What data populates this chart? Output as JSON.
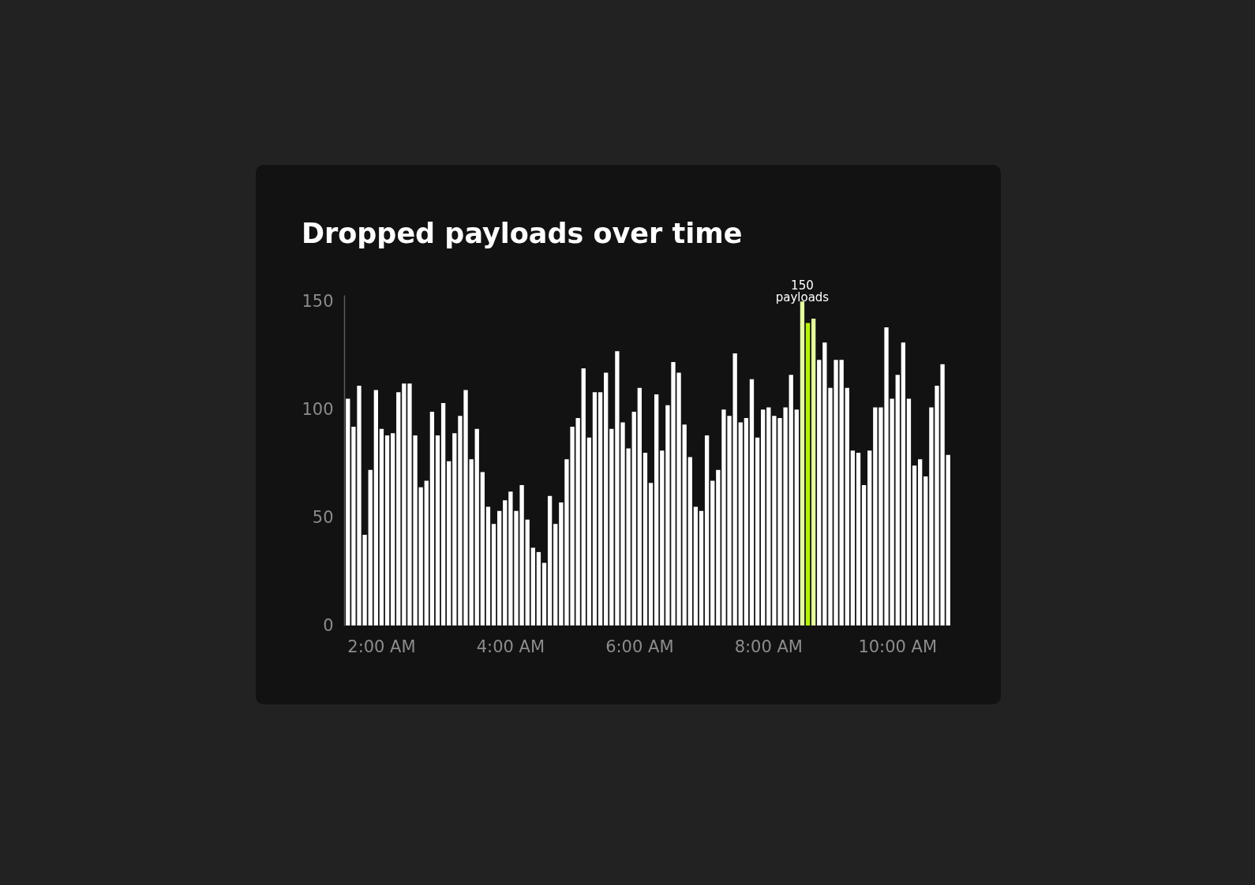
{
  "chart_data": {
    "type": "bar",
    "title": "Dropped payloads over time",
    "categories": [
      null,
      null,
      null,
      null,
      null,
      null,
      "2:00 AM",
      null,
      null,
      null,
      null,
      null,
      null,
      null,
      null,
      null,
      null,
      null,
      null,
      null,
      null,
      null,
      null,
      null,
      null,
      null,
      null,
      null,
      null,
      "4:00 AM",
      null,
      null,
      null,
      null,
      null,
      null,
      null,
      null,
      null,
      null,
      null,
      null,
      null,
      null,
      null,
      null,
      null,
      null,
      null,
      null,
      null,
      null,
      "6:00 AM",
      null,
      null,
      null,
      null,
      null,
      null,
      null,
      null,
      null,
      null,
      null,
      null,
      null,
      null,
      null,
      null,
      null,
      null,
      null,
      null,
      null,
      null,
      "8:00 AM",
      null,
      null,
      null,
      null,
      null,
      null,
      null,
      null,
      null,
      null,
      null,
      null,
      null,
      null,
      null,
      null,
      null,
      null,
      null,
      null,
      null,
      null,
      "10:00 AM",
      null,
      null,
      null,
      null,
      null,
      null,
      null,
      null,
      null
    ],
    "values": [
      105,
      92,
      111,
      42,
      72,
      109,
      91,
      88,
      89,
      108,
      112,
      112,
      88,
      64,
      67,
      99,
      88,
      103,
      76,
      89,
      97,
      109,
      77,
      91,
      71,
      55,
      47,
      53,
      58,
      62,
      53,
      65,
      49,
      36,
      34,
      29,
      60,
      47,
      57,
      77,
      92,
      96,
      119,
      87,
      108,
      108,
      117,
      91,
      127,
      94,
      82,
      99,
      110,
      80,
      66,
      107,
      81,
      102,
      122,
      117,
      93,
      78,
      55,
      53,
      88,
      67,
      72,
      100,
      97,
      126,
      94,
      96,
      114,
      87,
      100,
      101,
      97,
      96,
      101,
      116,
      100,
      150,
      140,
      142,
      123,
      131,
      110,
      123,
      123,
      110,
      81,
      80,
      65,
      81,
      101,
      101,
      138,
      105,
      116,
      131,
      105,
      74,
      77,
      69,
      101,
      111,
      121,
      79
    ],
    "colors": [
      "#ffffff",
      "#ffffff",
      "#ffffff",
      "#ffffff",
      "#ffffff",
      "#ffffff",
      "#ffffff",
      "#ffffff",
      "#ffffff",
      "#ffffff",
      "#ffffff",
      "#ffffff",
      "#ffffff",
      "#ffffff",
      "#ffffff",
      "#ffffff",
      "#ffffff",
      "#ffffff",
      "#ffffff",
      "#ffffff",
      "#ffffff",
      "#ffffff",
      "#ffffff",
      "#ffffff",
      "#ffffff",
      "#ffffff",
      "#ffffff",
      "#ffffff",
      "#ffffff",
      "#ffffff",
      "#ffffff",
      "#ffffff",
      "#ffffff",
      "#ffffff",
      "#ffffff",
      "#ffffff",
      "#ffffff",
      "#ffffff",
      "#ffffff",
      "#ffffff",
      "#ffffff",
      "#ffffff",
      "#ffffff",
      "#ffffff",
      "#ffffff",
      "#ffffff",
      "#ffffff",
      "#ffffff",
      "#ffffff",
      "#ffffff",
      "#ffffff",
      "#ffffff",
      "#ffffff",
      "#ffffff",
      "#ffffff",
      "#ffffff",
      "#ffffff",
      "#ffffff",
      "#ffffff",
      "#ffffff",
      "#ffffff",
      "#ffffff",
      "#ffffff",
      "#ffffff",
      "#ffffff",
      "#ffffff",
      "#ffffff",
      "#ffffff",
      "#ffffff",
      "#ffffff",
      "#ffffff",
      "#ffffff",
      "#ffffff",
      "#ffffff",
      "#ffffff",
      "#ffffff",
      "#ffffff",
      "#ffffff",
      "#ffffff",
      "#ffffff",
      "#ffffff",
      "#e5ffa0",
      "#b5f20a",
      "#e5ffa0",
      "#ffffff",
      "#ffffff",
      "#ffffff",
      "#ffffff",
      "#ffffff",
      "#ffffff",
      "#ffffff",
      "#ffffff",
      "#ffffff",
      "#ffffff",
      "#ffffff",
      "#ffffff",
      "#ffffff",
      "#ffffff",
      "#ffffff",
      "#ffffff",
      "#ffffff",
      "#ffffff",
      "#ffffff",
      "#ffffff",
      "#ffffff",
      "#ffffff",
      "#ffffff",
      "#ffffff"
    ],
    "ylim": [
      0,
      153
    ],
    "yticks": [
      0,
      50,
      100,
      150
    ],
    "annotations": [
      "150 payloads"
    ]
  }
}
